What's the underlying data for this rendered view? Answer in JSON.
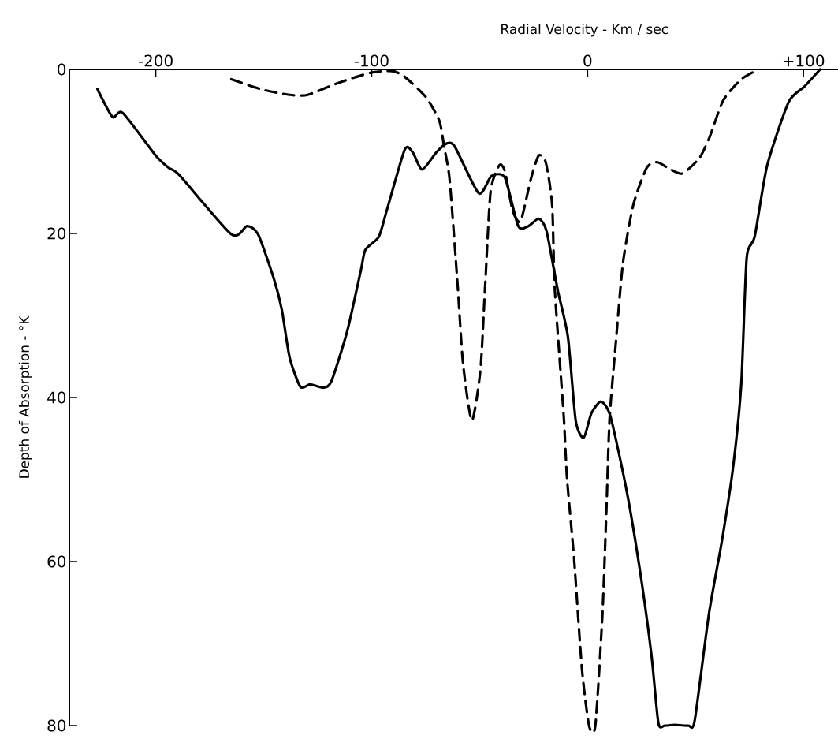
{
  "chart_data": {
    "type": "line",
    "xlabel": "Radial  Velocity - Km / sec",
    "ylabel": "Depth  of  Absorption  - °K",
    "xlim": [
      -240,
      116
    ],
    "ylim": [
      80,
      0
    ],
    "xticks": [
      -200,
      -100,
      0,
      {
        "value": 100,
        "label": "+100"
      }
    ],
    "yticks": [
      0,
      20,
      40,
      60,
      80
    ],
    "grid": false,
    "marker": "none",
    "series": [
      {
        "color": "#000000",
        "line_style": "solid",
        "x": [
          -227,
          -220,
          -215.3,
          -200,
          -194,
          -189,
          -165,
          -157.7,
          -152.6,
          -145.3,
          -141.6,
          -138,
          -133,
          -128.5,
          -122.3,
          -118.6,
          -111.3,
          -105,
          -102.9,
          -96.7,
          -93,
          -84.7,
          -81,
          -76.6,
          -70,
          -65,
          -61.3,
          -50.4,
          -44.5,
          -38.3,
          -32.1,
          -27.4,
          -22.6,
          -19,
          -13.9,
          -9.1,
          -5.5,
          -1.8,
          1.8,
          6.2,
          10.6,
          18.2,
          24.5,
          29.6,
          32.8,
          35.8,
          40.5,
          46.7,
          49.6,
          56.2,
          62.4,
          67.5,
          71.2,
          73.7,
          77.4,
          83.2,
          93.1,
          100.4,
          107.7
        ],
        "values": [
          2.4,
          5.8,
          5.3,
          10.5,
          12,
          12.9,
          20.1,
          19.1,
          20.1,
          25.5,
          29.3,
          35.1,
          38.7,
          38.4,
          38.8,
          38,
          31.9,
          24.5,
          22,
          20.4,
          17.2,
          9.8,
          10.1,
          12.2,
          10.1,
          9,
          9.5,
          15.1,
          13,
          13.2,
          19.1,
          19.1,
          18.2,
          19.7,
          26.8,
          32.6,
          42.8,
          44.9,
          41.9,
          40.5,
          42.3,
          51.5,
          61.5,
          71.4,
          79.7,
          80,
          79.9,
          80,
          79.4,
          66.4,
          57.2,
          48.3,
          38.3,
          23,
          20.4,
          11.7,
          4,
          2.1,
          0
        ]
      },
      {
        "color": "#000000",
        "line_style": "dashed",
        "x": [
          -165,
          -151.5,
          -138,
          -129.6,
          -115,
          -100.4,
          -90.5,
          -84.7,
          -74.8,
          -68.6,
          -66.4,
          -63.9,
          -60.2,
          -57.7,
          -53.6,
          -49.6,
          -47.4,
          -44.9,
          -40.9,
          -38.3,
          -34.7,
          -31,
          -26.3,
          -22.6,
          -19.3,
          -16.4,
          -15.3,
          -12.8,
          -10.9,
          -9.5,
          -6.2,
          -2.6,
          0.7,
          3.6,
          6.9,
          8.8,
          10.2,
          13.1,
          16.4,
          21.2,
          27.4,
          32.1,
          37.2,
          43.8,
          51.8,
          56.6,
          62.8,
          71.2,
          79.2
        ],
        "values": [
          1.2,
          2.4,
          3.1,
          3.1,
          1.6,
          0.4,
          0.2,
          0.9,
          3.4,
          6.3,
          9.5,
          13.4,
          26.2,
          35.8,
          42.8,
          36.6,
          26.2,
          14.9,
          11.7,
          12.4,
          17.2,
          18.5,
          13.4,
          10.5,
          11.4,
          16.5,
          26.2,
          35.8,
          42.8,
          49.9,
          59.8,
          73.1,
          80,
          80,
          66.4,
          53.2,
          42.6,
          33.3,
          23.6,
          16.5,
          12,
          11.3,
          12,
          12.7,
          10.8,
          8.2,
          3.8,
          1.2,
          0
        ]
      }
    ]
  }
}
